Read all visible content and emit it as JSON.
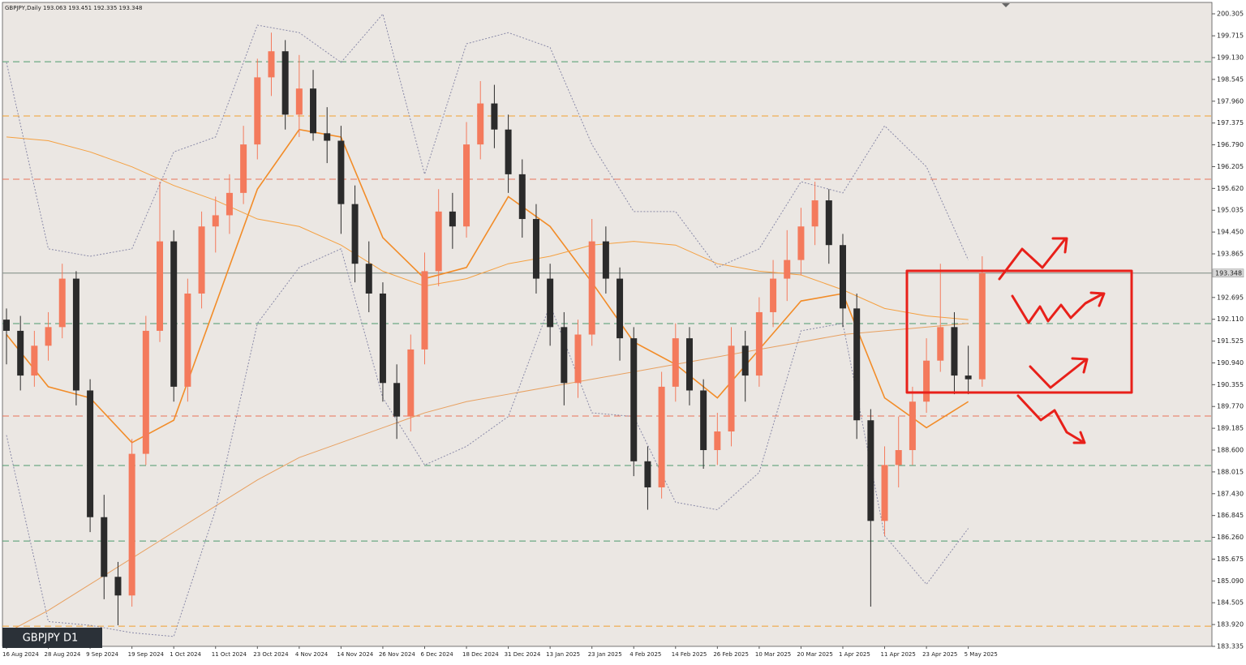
{
  "chart_data": {
    "type": "candlestick",
    "header": "GBPJPY,Daily  193.063 193.451 192.335 193.348",
    "watermark": "GBPJPY D1",
    "categories": [
      "16 Aug 2024",
      null,
      null,
      "28 Aug 2024",
      null,
      null,
      "9 Sep 2024",
      null,
      null,
      "19 Sep 2024",
      null,
      null,
      "1 Oct 2024",
      null,
      null,
      "11 Oct 2024",
      null,
      null,
      "23 Oct 2024",
      null,
      null,
      "4 Nov 2024",
      null,
      null,
      "14 Nov 2024",
      null,
      null,
      "26 Nov 2024",
      null,
      null,
      "6 Dec 2024",
      null,
      null,
      "18 Dec 2024",
      null,
      null,
      "31 Dec 2024",
      null,
      null,
      "13 Jan 2025",
      null,
      null,
      "23 Jan 2025",
      null,
      null,
      "4 Feb 2025",
      null,
      null,
      "14 Feb 2025",
      null,
      null,
      "26 Feb 2025",
      null,
      null,
      "10 Mar 2025",
      null,
      null,
      "20 Mar 2025",
      null,
      null,
      "1 Apr 2025",
      null,
      null,
      "11 Apr 2025",
      null,
      null,
      "23 Apr 2025",
      null,
      null,
      "5 May 2025",
      null
    ],
    "open": [
      192.1,
      191.8,
      190.6,
      191.4,
      191.9,
      193.2,
      190.2,
      186.8,
      185.2,
      184.7,
      188.5,
      191.8,
      194.2,
      190.3,
      192.8,
      194.6,
      194.9,
      195.5,
      196.8,
      198.6,
      199.3,
      197.6,
      198.3,
      197.1,
      196.9,
      195.2,
      193.6,
      192.8,
      190.4,
      189.5,
      191.3,
      193.4,
      195.0,
      194.6,
      196.8,
      197.9,
      197.2,
      196.0,
      194.8,
      193.2,
      191.9,
      190.4,
      191.7,
      194.2,
      193.2,
      191.6,
      188.3,
      187.6,
      190.3,
      191.6,
      190.2,
      188.6,
      189.1,
      191.4,
      190.6,
      192.3,
      193.2,
      193.7,
      194.6,
      195.3,
      194.1,
      192.4,
      189.4,
      186.7,
      188.2,
      188.6,
      189.9,
      191.0,
      191.9,
      190.6,
      190.5
    ],
    "high": [
      192.4,
      192.2,
      191.8,
      192.3,
      193.6,
      193.4,
      190.5,
      187.4,
      185.6,
      188.9,
      192.2,
      195.8,
      194.5,
      193.2,
      195.0,
      195.4,
      196.0,
      197.3,
      199.1,
      199.8,
      199.6,
      199.2,
      198.8,
      197.8,
      197.3,
      195.7,
      194.2,
      193.1,
      190.9,
      191.7,
      193.9,
      195.6,
      195.5,
      197.4,
      198.5,
      198.4,
      197.6,
      196.4,
      195.2,
      193.6,
      192.3,
      192.1,
      194.8,
      194.6,
      193.5,
      191.9,
      188.7,
      190.7,
      192.0,
      191.9,
      190.5,
      189.6,
      191.9,
      191.8,
      192.7,
      193.7,
      194.5,
      195.1,
      195.8,
      195.6,
      194.4,
      192.8,
      189.7,
      188.7,
      189.5,
      190.3,
      191.6,
      193.6,
      192.3,
      191.4,
      193.8
    ],
    "low": [
      190.9,
      190.2,
      190.3,
      191.0,
      191.6,
      189.8,
      186.4,
      184.6,
      183.9,
      184.4,
      188.2,
      191.5,
      189.9,
      189.9,
      192.4,
      193.9,
      194.4,
      195.2,
      196.4,
      198.1,
      197.2,
      197.0,
      196.9,
      196.3,
      194.4,
      193.1,
      192.3,
      189.9,
      188.9,
      189.1,
      190.9,
      193.0,
      194.0,
      194.3,
      196.4,
      196.7,
      195.5,
      194.3,
      192.8,
      191.4,
      189.8,
      190.0,
      191.4,
      192.8,
      191.0,
      187.9,
      187.0,
      187.3,
      189.9,
      189.8,
      188.1,
      188.2,
      188.7,
      189.9,
      190.3,
      191.9,
      192.6,
      193.3,
      194.1,
      193.6,
      191.9,
      188.9,
      184.4,
      186.3,
      187.6,
      188.2,
      189.6,
      190.7,
      190.1,
      190.1,
      190.3
    ],
    "close": [
      191.8,
      190.6,
      191.4,
      191.9,
      193.2,
      190.2,
      186.8,
      185.2,
      184.7,
      188.5,
      191.8,
      194.2,
      190.3,
      192.8,
      194.6,
      194.9,
      195.5,
      196.8,
      198.6,
      199.3,
      197.6,
      198.3,
      197.1,
      196.9,
      195.2,
      193.6,
      192.8,
      190.4,
      189.5,
      191.3,
      193.4,
      195.0,
      194.6,
      196.8,
      197.9,
      197.2,
      196.0,
      194.8,
      193.2,
      191.9,
      190.4,
      191.7,
      194.2,
      193.2,
      191.6,
      188.3,
      187.6,
      190.3,
      191.6,
      190.2,
      188.6,
      189.1,
      191.4,
      190.6,
      192.3,
      193.2,
      193.7,
      194.6,
      195.3,
      194.1,
      192.4,
      189.4,
      186.7,
      188.2,
      188.6,
      189.9,
      191.0,
      191.9,
      190.6,
      190.5,
      193.35
    ],
    "up_color": "#f47a5c",
    "down_color": "#2b2b2b",
    "ylim": [
      183.335,
      200.61
    ],
    "yticks": [
      183.335,
      {
        "value": 183.92,
        "label": "183.920"
      },
      184.505,
      {
        "value": 185.09,
        "label": "185.090"
      },
      185.675,
      {
        "value": 186.26,
        "label": "186.260"
      },
      186.845,
      {
        "value": 187.43,
        "label": "187.430"
      },
      188.015,
      {
        "value": 188.6,
        "label": "188.600"
      },
      189.185,
      {
        "value": 189.77,
        "label": "189.770"
      },
      190.355,
      {
        "value": 190.94,
        "label": "190.940"
      },
      191.525,
      {
        "value": 192.11,
        "label": "192.110"
      },
      192.695,
      193.865,
      {
        "value": 194.45,
        "label": "194.450"
      },
      195.035,
      {
        "value": 195.62,
        "label": "195.620"
      },
      196.205,
      {
        "value": 196.79,
        "label": "196.790"
      },
      197.375,
      {
        "value": 197.96,
        "label": "197.960"
      },
      198.545,
      {
        "value": 199.13,
        "label": "199.130"
      },
      199.715,
      200.305
    ],
    "last_price": 193.348,
    "levels": [
      {
        "value": 199.02,
        "color": "#4e9a6e"
      },
      {
        "value": 197.563,
        "color": "#f0a030"
      },
      {
        "value": 195.866,
        "color": "#e8735a"
      },
      {
        "value": 191.994,
        "color": "#4e9a6e"
      },
      {
        "value": 189.513,
        "color": "#e8735a"
      },
      {
        "value": 188.186,
        "color": "#4e9a6e"
      },
      {
        "value": 186.162,
        "color": "#4e9a6e"
      },
      {
        "value": 183.877,
        "color": "#f0a030"
      }
    ],
    "indicators": [
      {
        "color": "#f28c28",
        "width": 1.6,
        "dashed": false,
        "values": [
          191.7,
          190.3,
          190.0,
          188.8,
          189.4,
          192.5,
          195.6,
          197.2,
          197.0,
          194.3,
          193.2,
          193.5,
          195.4,
          194.6,
          193.1,
          191.5,
          190.9,
          190.0,
          191.3,
          192.6,
          192.8,
          190.0,
          189.2,
          189.9
        ]
      },
      {
        "color": "#f5a040",
        "width": 1,
        "dashed": false,
        "values": [
          197.0,
          196.9,
          196.6,
          196.2,
          195.7,
          195.3,
          194.8,
          194.6,
          194.1,
          193.4,
          193.0,
          193.2,
          193.6,
          193.8,
          194.1,
          194.2,
          194.1,
          193.6,
          193.4,
          193.3,
          192.9,
          192.4,
          192.2,
          192.1
        ]
      },
      {
        "color": "#e8a060",
        "width": 1,
        "dashed": false,
        "values": [
          183.7,
          184.3,
          185.0,
          185.7,
          186.4,
          187.1,
          187.8,
          188.4,
          188.8,
          189.2,
          189.6,
          189.9,
          190.1,
          190.3,
          190.5,
          190.7,
          190.9,
          191.1,
          191.3,
          191.5,
          191.7,
          191.8,
          191.9,
          192.0
        ]
      },
      {
        "color": "#8a8aa8",
        "width": 1,
        "dashed": true,
        "values": [
          199.0,
          194.0,
          193.8,
          194.0,
          196.6,
          197.0,
          200.0,
          199.8,
          199.0,
          200.3,
          196.0,
          199.5,
          199.8,
          199.4,
          196.8,
          195.0,
          195.0,
          193.5,
          194.0,
          195.8,
          195.5,
          197.3,
          196.2,
          193.7
        ]
      },
      {
        "color": "#8a8aa8",
        "width": 1,
        "dashed": true,
        "values": [
          189.0,
          184.0,
          183.9,
          183.7,
          183.6,
          187.0,
          192.0,
          193.5,
          194.0,
          190.0,
          188.2,
          188.7,
          189.5,
          192.5,
          189.6,
          189.5,
          187.2,
          187.0,
          188.0,
          191.8,
          192.0,
          186.3,
          185.0,
          186.5
        ]
      }
    ]
  }
}
